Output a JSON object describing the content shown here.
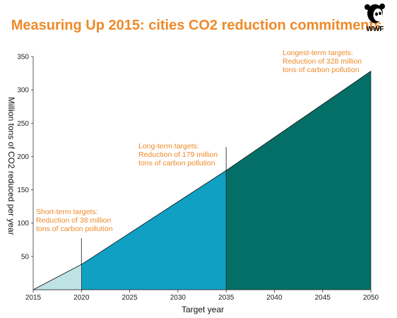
{
  "header": {
    "title": "Measuring Up 2015: cities CO2 reduction commitments",
    "logo_text": "WWF"
  },
  "colors": {
    "title": "#ee8a2a",
    "annotation": "#ee8a2a",
    "short_term_fill": "#bfe3e3",
    "long_term_fill": "#0fa0c4",
    "longest_term_fill": "#046f66",
    "axis": "#333333"
  },
  "chart_data": {
    "type": "area",
    "title": "Measuring Up 2015: cities CO2 reduction commitments",
    "xlabel": "Target year",
    "ylabel": "Million tons of CO2 reduced per year",
    "xlim": [
      2015,
      2050
    ],
    "ylim": [
      0,
      350
    ],
    "x_ticks": [
      2015,
      2020,
      2025,
      2030,
      2035,
      2040,
      2045,
      2050
    ],
    "y_ticks": [
      50,
      100,
      150,
      200,
      250,
      300,
      350
    ],
    "line": [
      {
        "x": 2015,
        "y": 0
      },
      {
        "x": 2020,
        "y": 38
      },
      {
        "x": 2035,
        "y": 179
      },
      {
        "x": 2050,
        "y": 328
      }
    ],
    "segments": [
      {
        "from": 2015,
        "to": 2020,
        "color_key": "short_term_fill"
      },
      {
        "from": 2020,
        "to": 2035,
        "color_key": "long_term_fill"
      },
      {
        "from": 2035,
        "to": 2050,
        "color_key": "longest_term_fill"
      }
    ],
    "annotations": [
      {
        "x": 2020,
        "y": 38,
        "heading": "Short-term targets:",
        "lines": [
          "Reduction of 38 million",
          "tons of carbon pollution"
        ]
      },
      {
        "x": 2035,
        "y": 179,
        "heading": "Long-term targets:",
        "lines": [
          "Reduction of 179 million",
          "tons of carbon pollution"
        ]
      },
      {
        "x": 2050,
        "y": 328,
        "heading": "Longest-term targets:",
        "lines": [
          "Reduction of 328 million",
          "tons of carbon pollution"
        ]
      }
    ],
    "grid": false
  }
}
